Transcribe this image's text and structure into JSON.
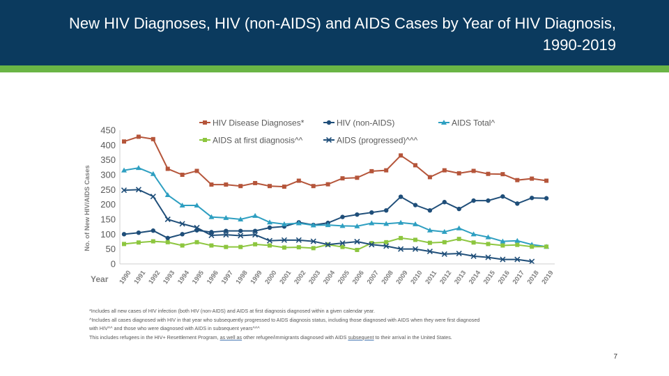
{
  "slide": {
    "title": "New HIV Diagnoses, HIV (non-AIDS) and AIDS Cases by Year of HIV Diagnosis, 1990-2019",
    "page_number": "7",
    "colors": {
      "header": "#0b3a5e",
      "accent_bar": "#6ab545"
    }
  },
  "notes": {
    "line1": "*Includes all new cases of HIV infection (both HIV (non-AIDS) and AIDS at first diagnosis diagnosed within a given calendar year.",
    "line2": "^Includes all cases diagnosed with HIV in that year who subsequently progressed to AIDS diagnosis status, including those diagnosed with AIDS when they were first diagnosed",
    "line3": "with HIV^^ and those who were diagnosed with AIDS in subsequent years^^^",
    "line4_a": "This includes refugees in the HIV+ Resettlement Program, ",
    "line4_b": "as well as",
    "line4_c": " other refugee/immigrants diagnosed with AIDS ",
    "line4_d": "subsequent",
    "line4_e": " to their arrival in the United States."
  },
  "chart_data": {
    "type": "line",
    "title": "",
    "xlabel": "Year",
    "ylabel": "No. of New HIV/AIDS Cases",
    "ylim": [
      0,
      450
    ],
    "yticks": [
      "0",
      "50",
      "100",
      "150",
      "200",
      "250",
      "300",
      "350",
      "400",
      "450"
    ],
    "categories": [
      "1990",
      "1991",
      "1992",
      "1993",
      "1994",
      "1995",
      "1996",
      "1997",
      "1998",
      "1999",
      "2000",
      "2001",
      "2002",
      "2003",
      "2004",
      "2005",
      "2006",
      "2007",
      "2008",
      "2009",
      "2010",
      "2011",
      "2012",
      "2013",
      "2014",
      "2015",
      "2016",
      "2017",
      "2018",
      "2019"
    ],
    "legend_position": "top",
    "series": [
      {
        "name": "HIV Disease Diagnoses*",
        "color": "#b5553a",
        "marker": "square",
        "values": [
          412,
          428,
          420,
          320,
          300,
          313,
          267,
          267,
          262,
          272,
          262,
          260,
          280,
          262,
          268,
          288,
          290,
          312,
          315,
          365,
          332,
          292,
          315,
          305,
          313,
          303,
          302,
          282,
          287,
          280
        ]
      },
      {
        "name": "HIV (non-AIDS)",
        "color": "#1f4e79",
        "marker": "circle",
        "values": [
          100,
          105,
          112,
          87,
          100,
          113,
          107,
          111,
          111,
          111,
          122,
          126,
          140,
          131,
          138,
          158,
          166,
          173,
          180,
          226,
          198,
          180,
          208,
          185,
          213,
          213,
          227,
          203,
          222,
          221
        ]
      },
      {
        "name": "AIDS Total^",
        "color": "#2e9fc1",
        "marker": "triangle",
        "values": [
          315,
          323,
          303,
          232,
          197,
          197,
          158,
          155,
          150,
          162,
          140,
          134,
          137,
          130,
          131,
          128,
          127,
          137,
          135,
          139,
          134,
          113,
          108,
          120,
          100,
          90,
          76,
          78,
          65,
          58
        ]
      },
      {
        "name": "AIDS at first diagnosis^^",
        "color": "#8dc63f",
        "marker": "square",
        "values": [
          67,
          72,
          76,
          73,
          62,
          73,
          62,
          57,
          57,
          66,
          62,
          55,
          56,
          53,
          65,
          57,
          47,
          70,
          73,
          87,
          81,
          71,
          73,
          84,
          72,
          67,
          62,
          64,
          58,
          58
        ]
      },
      {
        "name": "AIDS (progressed)^^^",
        "color": "#1f4e79",
        "marker": "x",
        "values": [
          248,
          250,
          227,
          150,
          135,
          122,
          96,
          98,
          95,
          98,
          78,
          80,
          80,
          76,
          65,
          70,
          75,
          65,
          60,
          50,
          50,
          42,
          33,
          35,
          26,
          22,
          15,
          15,
          8,
          null
        ]
      }
    ]
  }
}
